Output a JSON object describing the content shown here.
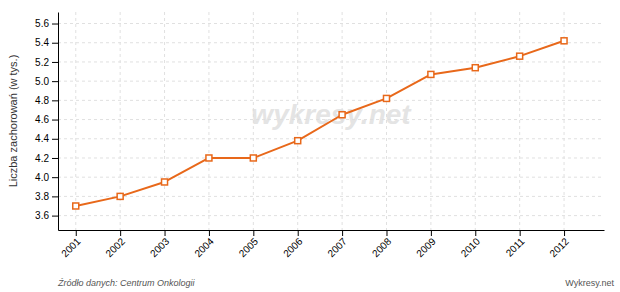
{
  "chart_data": {
    "type": "line",
    "y_label": "Liczba zachorowań (w tys.)",
    "x": [
      2001,
      2002,
      2003,
      2004,
      2005,
      2006,
      2007,
      2008,
      2009,
      2010,
      2011,
      2012
    ],
    "values": [
      3.7,
      3.8,
      3.95,
      4.2,
      4.2,
      4.38,
      4.65,
      4.82,
      5.07,
      5.14,
      5.26,
      5.42
    ],
    "color": "#E8681A",
    "marker": "square",
    "line_style": "solid",
    "xlim": [
      2000.6,
      2012.9
    ],
    "xticks": [
      2001,
      2002,
      2003,
      2004,
      2005,
      2006,
      2007,
      2008,
      2009,
      2010,
      2011,
      2012
    ],
    "ylim": [
      3.45,
      5.72
    ],
    "yticks": [
      3.6,
      3.8,
      {
        "value": 4.0,
        "label": "4.0"
      },
      4.2,
      4.4,
      4.6,
      4.8,
      {
        "value": 5.0,
        "label": "5.0"
      },
      5.2,
      5.4,
      5.6
    ],
    "grid": true,
    "annotations": [
      "wykresy.net",
      "Źródło danych:  Centrum Onkologii",
      "Wykresy.net"
    ]
  }
}
